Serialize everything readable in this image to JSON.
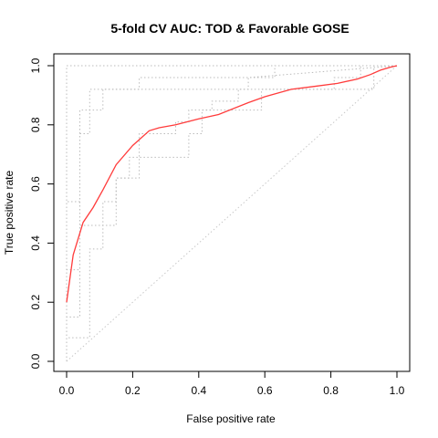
{
  "chart_data": {
    "type": "line",
    "title": "5-fold CV AUC: TOD & Favorable GOSE",
    "xlabel": "False positive rate",
    "ylabel": "True positive rate",
    "xlim": [
      0,
      1
    ],
    "ylim": [
      0,
      1
    ],
    "xticks": [
      "0.0",
      "0.2",
      "0.4",
      "0.6",
      "0.8",
      "1.0"
    ],
    "yticks": [
      "0.0",
      "0.2",
      "0.4",
      "0.6",
      "0.8",
      "1.0"
    ],
    "grid": false,
    "legend": "none",
    "colors": {
      "mean": "#ff3b3b",
      "folds": "#bbbbbb",
      "diagonal": "#c8c8c8",
      "axis": "#000000"
    },
    "series": [
      {
        "role": "cv-average",
        "style": "solid",
        "x": [
          0.0,
          0.02,
          0.05,
          0.08,
          0.11,
          0.15,
          0.2,
          0.25,
          0.28,
          0.33,
          0.4,
          0.46,
          0.55,
          0.6,
          0.68,
          0.75,
          0.82,
          0.88,
          0.92,
          0.95,
          0.98,
          1.0
        ],
        "y": [
          0.2,
          0.36,
          0.47,
          0.52,
          0.58,
          0.665,
          0.73,
          0.78,
          0.79,
          0.8,
          0.82,
          0.835,
          0.875,
          0.895,
          0.92,
          0.93,
          0.94,
          0.955,
          0.97,
          0.985,
          0.995,
          1.0
        ]
      },
      {
        "role": "fold",
        "style": "dotted",
        "x": [
          0.0,
          0.0,
          0.0,
          0.0,
          1.0
        ],
        "y": [
          0.0,
          0.38,
          0.55,
          1.0,
          1.0
        ]
      },
      {
        "role": "fold",
        "style": "dotted",
        "x": [
          0.0,
          0.0,
          0.04,
          0.04,
          0.07,
          0.07,
          0.11,
          0.11,
          0.22,
          0.22,
          0.63,
          0.63,
          1.0
        ],
        "y": [
          0.0,
          0.54,
          0.54,
          0.77,
          0.77,
          0.85,
          0.85,
          0.92,
          0.92,
          0.96,
          0.96,
          1.0,
          1.0
        ]
      },
      {
        "role": "fold",
        "style": "dotted",
        "x": [
          0.0,
          0.0,
          0.04,
          0.04,
          0.07,
          0.07,
          0.22,
          0.22,
          0.55,
          0.55,
          1.0
        ],
        "y": [
          0.0,
          0.15,
          0.15,
          0.85,
          0.85,
          0.92,
          0.92,
          0.92,
          0.92,
          0.96,
          1.0
        ]
      },
      {
        "role": "fold",
        "style": "dotted",
        "x": [
          0.0,
          0.0,
          0.07,
          0.07,
          0.11,
          0.11,
          0.15,
          0.15,
          0.22,
          0.22,
          0.37,
          0.37,
          0.41,
          0.41,
          0.59,
          0.59,
          0.93,
          0.93,
          1.0
        ],
        "y": [
          0.0,
          0.08,
          0.08,
          0.38,
          0.38,
          0.46,
          0.46,
          0.62,
          0.62,
          0.69,
          0.69,
          0.77,
          0.77,
          0.85,
          0.85,
          0.92,
          0.92,
          1.0,
          1.0
        ]
      },
      {
        "role": "fold",
        "style": "dotted",
        "x": [
          0.0,
          0.0,
          0.04,
          0.04,
          0.11,
          0.11,
          0.15,
          0.15,
          0.19,
          0.19,
          0.22,
          0.22,
          0.33,
          0.33,
          0.37,
          0.37,
          0.44,
          0.44,
          0.52,
          0.52,
          0.81,
          0.81,
          0.89,
          0.89,
          1.0
        ],
        "y": [
          0.0,
          0.31,
          0.31,
          0.46,
          0.46,
          0.54,
          0.54,
          0.62,
          0.62,
          0.69,
          0.69,
          0.77,
          0.77,
          0.81,
          0.81,
          0.85,
          0.85,
          0.88,
          0.88,
          0.92,
          0.92,
          0.96,
          0.96,
          1.0,
          1.0
        ]
      },
      {
        "role": "chance",
        "style": "dotted",
        "x": [
          0.0,
          1.0
        ],
        "y": [
          0.0,
          1.0
        ]
      }
    ]
  }
}
